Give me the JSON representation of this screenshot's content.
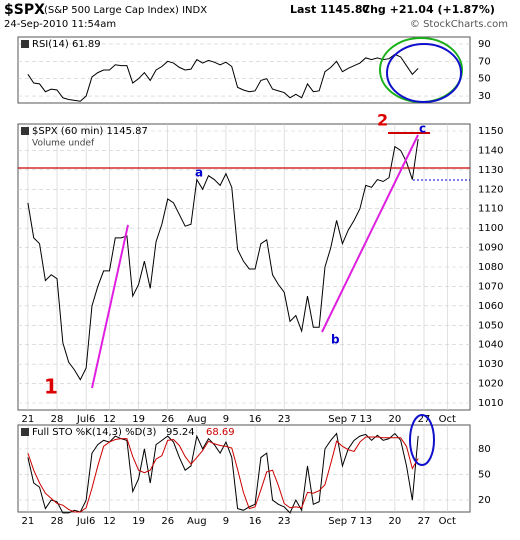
{
  "header": {
    "symbol": "$SPX",
    "name": "(S&P 500 Large Cap Index) INDX",
    "date": "24-Sep-2010 11:54am",
    "last": "Last 1145.87",
    "chg": "Chg +21.04 (+1.87%)",
    "credit": "© StockCharts.com"
  },
  "annotations": [
    "1",
    "2",
    "a",
    "b",
    "c"
  ],
  "chart_data": [
    {
      "type": "line",
      "title": "RSI(14) 61.89",
      "x": [
        0,
        1,
        2,
        3,
        4,
        5,
        6,
        7,
        8,
        9,
        10,
        11,
        12,
        13,
        14,
        15,
        16,
        17,
        18,
        19,
        20,
        21,
        22,
        23,
        24,
        25,
        26,
        27,
        28,
        29,
        30,
        31,
        32,
        33,
        34,
        35,
        36,
        37,
        38,
        39,
        40,
        41,
        42,
        43,
        44,
        45,
        46,
        47,
        48,
        49,
        50,
        51,
        52,
        53,
        54,
        55,
        56,
        57,
        58,
        59,
        60,
        61,
        62,
        63,
        64,
        65,
        66,
        67
      ],
      "xlim": [
        -1.7,
        75.9
      ],
      "ylim": [
        22,
        98
      ],
      "yticks": [
        30,
        50,
        70,
        90
      ],
      "grid": true,
      "series": [
        {
          "color": "#000000",
          "values": [
            55,
            45,
            44,
            35,
            38,
            37,
            28,
            26,
            25,
            24,
            30,
            52,
            57,
            60,
            60,
            66,
            65,
            65,
            45,
            50,
            57,
            48,
            60,
            64,
            70,
            68,
            63,
            60,
            61,
            72,
            68,
            71,
            69,
            66,
            69,
            64,
            40,
            37,
            35,
            36,
            48,
            50,
            38,
            36,
            34,
            28,
            32,
            28,
            44,
            35,
            36,
            58,
            63,
            70,
            58,
            62,
            65,
            68,
            74,
            72,
            74,
            72,
            73,
            78,
            75,
            65,
            55,
            61.89
          ]
        }
      ]
    },
    {
      "type": "line",
      "title": "$SPX (60 min) 1145.87",
      "subtitle": "Volume undef",
      "x": [
        0,
        1,
        2,
        3,
        4,
        5,
        6,
        7,
        8,
        9,
        10,
        11,
        12,
        13,
        14,
        15,
        16,
        17,
        18,
        19,
        20,
        21,
        22,
        23,
        24,
        25,
        26,
        27,
        28,
        29,
        30,
        31,
        32,
        33,
        34,
        35,
        36,
        37,
        38,
        39,
        40,
        41,
        42,
        43,
        44,
        45,
        46,
        47,
        48,
        49,
        50,
        51,
        52,
        53,
        54,
        55,
        56,
        57,
        58,
        59,
        60,
        61,
        62,
        63,
        64,
        65,
        66,
        67
      ],
      "xlim": [
        -1.7,
        75.9
      ],
      "ylim": [
        1006.4,
        1153.6
      ],
      "yticks": [
        1010,
        1020,
        1030,
        1040,
        1050,
        1060,
        1070,
        1080,
        1090,
        1100,
        1110,
        1120,
        1130,
        1140,
        1150
      ],
      "xticks": [
        {
          "value": 0,
          "label": "21"
        },
        {
          "value": 5,
          "label": "28"
        },
        {
          "value": 10,
          "label": "Jul6"
        },
        {
          "value": 14,
          "label": "12"
        },
        19,
        {
          "value": 24,
          "label": "26"
        },
        {
          "value": 29,
          "label": "Aug"
        },
        {
          "value": 34,
          "label": "9"
        },
        {
          "value": 39,
          "label": "16"
        },
        {
          "value": 44,
          "label": "23"
        },
        {
          "value": 54,
          "label": "Sep 7"
        },
        {
          "value": 58,
          "label": "13"
        },
        {
          "value": 63,
          "label": "20"
        },
        {
          "value": 68,
          "label": "27"
        },
        {
          "value": 72,
          "label": "Oct"
        }
      ],
      "grid": true,
      "series": [
        {
          "color": "#000000",
          "values": [
            1113,
            1095,
            1092,
            1073,
            1076,
            1074,
            1041,
            1031,
            1027,
            1022,
            1028,
            1060,
            1070,
            1078,
            1078,
            1095,
            1095,
            1096,
            1065,
            1071,
            1083,
            1069,
            1093,
            1102,
            1115,
            1113,
            1107,
            1101,
            1102,
            1125,
            1120,
            1127,
            1125,
            1122,
            1128,
            1121,
            1089,
            1083,
            1079,
            1079,
            1092,
            1094,
            1076,
            1071,
            1067,
            1052,
            1055,
            1047,
            1065,
            1049,
            1049,
            1080,
            1090,
            1104,
            1092,
            1099,
            1104,
            1110,
            1122,
            1121,
            1125,
            1124,
            1126,
            1142,
            1140,
            1134,
            1125,
            1145.87
          ]
        }
      ]
    },
    {
      "type": "line",
      "title": "Full STO %K(14,3) %D(3)",
      "x": [
        0,
        1,
        2,
        3,
        4,
        5,
        6,
        7,
        8,
        9,
        10,
        11,
        12,
        13,
        14,
        15,
        16,
        17,
        18,
        19,
        20,
        21,
        22,
        23,
        24,
        25,
        26,
        27,
        28,
        29,
        30,
        31,
        32,
        33,
        34,
        35,
        36,
        37,
        38,
        39,
        40,
        41,
        42,
        43,
        44,
        45,
        46,
        47,
        48,
        49,
        50,
        51,
        52,
        53,
        54,
        55,
        56,
        57,
        58,
        59,
        60,
        61,
        62,
        63,
        64,
        65,
        66,
        67
      ],
      "xlim": [
        -1.7,
        75.9
      ],
      "ylim": [
        6,
        108
      ],
      "yticks": [
        20,
        50,
        80
      ],
      "xticks": [
        {
          "value": 0,
          "label": "21"
        },
        {
          "value": 5,
          "label": "28"
        },
        {
          "value": 10,
          "label": "Jul6"
        },
        {
          "value": 14,
          "label": "12"
        },
        19,
        {
          "value": 24,
          "label": "26"
        },
        {
          "value": 29,
          "label": "Aug"
        },
        {
          "value": 34,
          "label": "9"
        },
        {
          "value": 39,
          "label": "16"
        },
        {
          "value": 44,
          "label": "23"
        },
        {
          "value": 54,
          "label": "Sep 7"
        },
        {
          "value": 58,
          "label": "13"
        },
        {
          "value": 63,
          "label": "20"
        },
        {
          "value": 68,
          "label": "27"
        },
        {
          "value": 72,
          "label": "Oct"
        }
      ],
      "grid": true,
      "series": [
        {
          "color": "#000000",
          "last_label": "95.24",
          "values": [
            70,
            40,
            35,
            10,
            20,
            18,
            5,
            5,
            8,
            6,
            20,
            75,
            85,
            90,
            88,
            95,
            92,
            90,
            30,
            45,
            80,
            40,
            85,
            90,
            95,
            88,
            70,
            55,
            60,
            95,
            80,
            92,
            85,
            75,
            88,
            70,
            10,
            8,
            12,
            15,
            70,
            75,
            20,
            15,
            12,
            5,
            20,
            8,
            60,
            15,
            18,
            80,
            90,
            98,
            60,
            80,
            90,
            95,
            97,
            90,
            96,
            90,
            92,
            98,
            90,
            60,
            20,
            95.24
          ]
        },
        {
          "color": "#cc0000",
          "last_label": "68.69",
          "values": [
            75,
            55,
            40,
            28,
            22,
            16,
            14,
            9,
            6,
            6,
            11,
            34,
            60,
            83,
            88,
            91,
            92,
            92,
            71,
            55,
            52,
            55,
            68,
            72,
            90,
            91,
            84,
            71,
            62,
            70,
            78,
            89,
            86,
            84,
            83,
            81,
            56,
            29,
            10,
            12,
            32,
            53,
            55,
            37,
            16,
            11,
            12,
            11,
            29,
            28,
            31,
            38,
            63,
            89,
            83,
            79,
            77,
            88,
            94,
            94,
            94,
            93,
            93,
            93,
            93,
            83,
            57,
            68.69
          ]
        }
      ]
    }
  ]
}
